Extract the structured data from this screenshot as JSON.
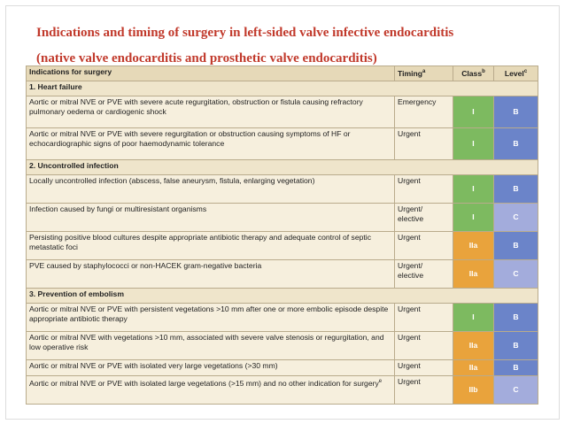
{
  "header": {
    "title_line1": "Indications and timing of surgery in left-sided valve infective endocarditis",
    "title_line2": "(native valve endocarditis and prosthetic valve endocarditis)"
  },
  "table": {
    "columns": [
      {
        "text": "Indications for surgery",
        "sup": ""
      },
      {
        "text": "Timing",
        "sup": "a"
      },
      {
        "text": "Class",
        "sup": "b"
      },
      {
        "text": "Level",
        "sup": "c"
      }
    ],
    "sections": [
      {
        "title": "1. Heart failure",
        "rows": [
          {
            "indication": "Aortic or mitral NVE or PVE with severe acute regurgitation, obstruction or fistula causing refractory pulmonary oedema or cardiogenic shock",
            "timing": "Emergency",
            "class": "I",
            "level": "B",
            "class_color": "#7dba60",
            "level_color": "#6b84c9"
          },
          {
            "indication": "Aortic or mitral NVE or PVE with severe regurgitation or obstruction causing symptoms of HF or echocardiographic signs of poor haemodynamic tolerance",
            "timing": "Urgent",
            "class": "I",
            "level": "B",
            "class_color": "#7dba60",
            "level_color": "#6b84c9"
          }
        ]
      },
      {
        "title": "2. Uncontrolled infection",
        "rows": [
          {
            "indication": "Locally uncontrolled infection (abscess, false aneurysm, fistula, enlarging vegetation)",
            "timing": "Urgent",
            "class": "I",
            "level": "B",
            "class_color": "#7dba60",
            "level_color": "#6b84c9"
          },
          {
            "indication": "Infection caused by fungi or multiresistant organisms",
            "timing": "Urgent/ elective",
            "class": "I",
            "level": "C",
            "class_color": "#7dba60",
            "level_color": "#a3acdc"
          },
          {
            "indication": "Persisting positive blood cultures despite appropriate antibiotic therapy and adequate control of septic metastatic foci",
            "timing": "Urgent",
            "class": "IIa",
            "level": "B",
            "class_color": "#e9a33c",
            "level_color": "#6b84c9"
          },
          {
            "indication": "PVE caused by staphylococci or non-HACEK gram-negative bacteria",
            "timing": "Urgent/ elective",
            "class": "IIa",
            "level": "C",
            "class_color": "#e9a33c",
            "level_color": "#a3acdc"
          }
        ]
      },
      {
        "title": "3. Prevention of embolism",
        "rows": [
          {
            "indication": "Aortic or mitral NVE or PVE with persistent vegetations >10 mm after one or more embolic episode despite appropriate antibiotic therapy",
            "timing": "Urgent",
            "class": "I",
            "level": "B",
            "class_color": "#7dba60",
            "level_color": "#6b84c9"
          },
          {
            "indication": "Aortic or mitral NVE with vegetations >10 mm, associated with severe valve stenosis or regurgitation, and low operative risk",
            "timing": "Urgent",
            "class": "IIa",
            "level": "B",
            "class_color": "#e9a33c",
            "level_color": "#6b84c9"
          },
          {
            "indication": "Aortic or mitral NVE or PVE with isolated very large vegetations (>30 mm)",
            "timing": "Urgent",
            "class": "IIa",
            "level": "B",
            "class_color": "#e9a33c",
            "level_color": "#6b84c9"
          },
          {
            "indication": "Aortic or mitral NVE or PVE with isolated large vegetations (>15 mm) and no other indication for surgery",
            "sup": "e",
            "timing": "Urgent",
            "class": "IIb",
            "level": "C",
            "class_color": "#e9a33c",
            "level_color": "#a3acdc"
          }
        ]
      }
    ]
  }
}
